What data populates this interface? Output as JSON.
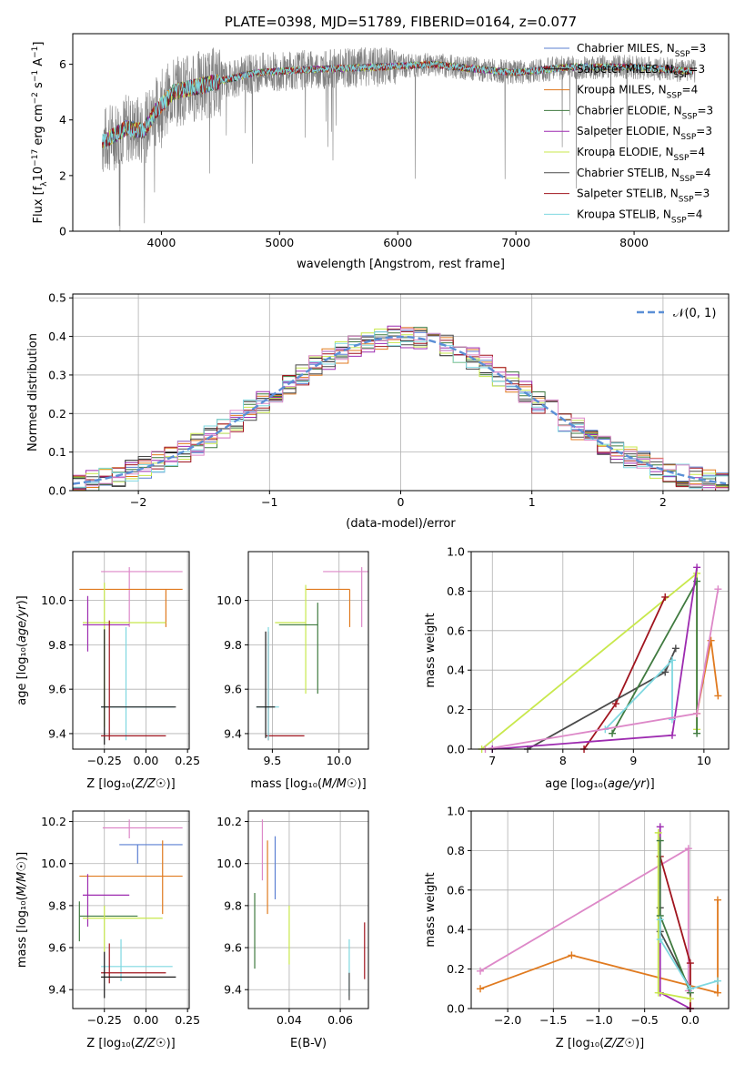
{
  "colors": {
    "Chabrier MILES": "#5b7fd2",
    "Salpeter MILES": "#1a1a1a",
    "Kroupa MILES": "#e07a1f",
    "Chabrier ELODIE": "#3f7a3f",
    "Salpeter ELODIE": "#9d2bb0",
    "Kroupa ELODIE": "#c8e84c",
    "Chabrier STELIB": "#4a4a4a",
    "Salpeter STELIB": "#a0141e",
    "Kroupa STELIB": "#7fd8e0",
    "Pink": "#dd88c8",
    "Normal": "#5b8fd6"
  },
  "chart_data": [
    {
      "id": "spectrum",
      "type": "line",
      "title": "PLATE=0398, MJD=51789, FIBERID=0164, z=0.077",
      "xlabel": "wavelength [Angstrom, rest frame]",
      "ylabel": "Flux [fλ10⁻¹⁷ erg cm⁻² s⁻¹ A⁻¹]",
      "xlim": [
        3250,
        8800
      ],
      "ylim": [
        0,
        7.1
      ],
      "xticks": [
        4000,
        5000,
        6000,
        7000,
        8000
      ],
      "yticks": [
        0,
        2,
        4,
        6
      ],
      "legend": "top-right",
      "legend_entries": [
        {
          "label": "Chabrier MILES, N",
          "sub": "SSP",
          "val": "=3"
        },
        {
          "label": "Salpeter MILES, N",
          "sub": "SSP",
          "val": "=3"
        },
        {
          "label": "Kroupa MILES, N",
          "sub": "SSP",
          "val": "=4"
        },
        {
          "label": "Chabrier ELODIE, N",
          "sub": "SSP",
          "val": "=3"
        },
        {
          "label": "Salpeter ELODIE, N",
          "sub": "SSP",
          "val": "=3"
        },
        {
          "label": "Kroupa ELODIE, N",
          "sub": "SSP",
          "val": "=4"
        },
        {
          "label": "Chabrier STELIB, N",
          "sub": "SSP",
          "val": "=4"
        },
        {
          "label": "Salpeter STELIB, N",
          "sub": "SSP",
          "val": "=3"
        },
        {
          "label": "Kroupa STELIB, N",
          "sub": "SSP",
          "val": "=4"
        }
      ],
      "continuum": [
        [
          3500,
          3.2
        ],
        [
          3700,
          3.7
        ],
        [
          3850,
          3.6
        ],
        [
          3950,
          4.3
        ],
        [
          4100,
          5.0
        ],
        [
          4400,
          5.3
        ],
        [
          4800,
          5.7
        ],
        [
          5200,
          5.8
        ],
        [
          5800,
          5.9
        ],
        [
          6300,
          6.0
        ],
        [
          6600,
          5.85
        ],
        [
          7000,
          5.7
        ],
        [
          7450,
          5.9
        ],
        [
          8000,
          5.9
        ],
        [
          8500,
          5.75
        ]
      ]
    },
    {
      "id": "histogram",
      "type": "histogram",
      "xlabel": "(data-model)/error",
      "ylabel": "Normed distribution",
      "xlim": [
        -2.5,
        2.5
      ],
      "ylim": [
        0,
        0.51
      ],
      "xticks": [
        -2,
        -1,
        0,
        1,
        2
      ],
      "yticks": [
        0.0,
        0.1,
        0.2,
        0.3,
        0.4,
        0.5
      ],
      "legend": "top-right",
      "legend_label": "𝒩(0, 1)",
      "bin_width": 0.1,
      "bin_start": -2.5,
      "curve": "gaussian mean 0 sigma 1"
    },
    {
      "id": "age_vs_Z",
      "type": "scatter",
      "xlabel": "Z [log₁₀(Z/Z☉)]",
      "ylabel": "age  [log₁₀(age/yr)]",
      "xlim": [
        -0.44,
        0.26
      ],
      "ylim": [
        9.33,
        10.22
      ],
      "xticks": [
        -0.25,
        0.0,
        0.25
      ],
      "yticks": [
        9.4,
        9.6,
        9.8,
        10.0
      ],
      "errorbars": [
        {
          "c": "Pink",
          "x": -0.1,
          "y": 10.13,
          "xe": [
            -0.27,
            0.22
          ],
          "ye": [
            9.88,
            10.15
          ]
        },
        {
          "c": "Kroupa MILES",
          "x": 0.12,
          "y": 10.05,
          "xe": [
            -0.4,
            0.22
          ],
          "ye": [
            9.88,
            10.05
          ]
        },
        {
          "c": "Kroupa ELODIE",
          "x": -0.25,
          "y": 9.9,
          "xe": [
            -0.38,
            0.12
          ],
          "ye": [
            9.43,
            10.08
          ]
        },
        {
          "c": "Salpeter ELODIE",
          "x": -0.35,
          "y": 9.89,
          "xe": [
            -0.38,
            -0.1
          ],
          "ye": [
            9.77,
            10.02
          ]
        },
        {
          "c": "Kroupa STELIB",
          "x": -0.12,
          "y": 9.52,
          "xe": [
            -0.27,
            0.17
          ],
          "ye": [
            9.37,
            9.88
          ]
        },
        {
          "c": "Salpeter MILES",
          "x": -0.25,
          "y": 9.52,
          "xe": [
            -0.27,
            0.18
          ],
          "ye": [
            9.35,
            9.87
          ]
        },
        {
          "c": "Salpeter STELIB",
          "x": -0.22,
          "y": 9.39,
          "xe": [
            -0.27,
            0.12
          ],
          "ye": [
            9.37,
            9.91
          ]
        }
      ]
    },
    {
      "id": "age_vs_mass",
      "type": "scatter",
      "xlabel": "mass [log₁₀(M/M☉)]",
      "ylabel": "",
      "xlim": [
        9.32,
        10.22
      ],
      "ylim": [
        9.33,
        10.22
      ],
      "xticks": [
        9.5,
        10.0
      ],
      "yticks": [
        9.4,
        9.6,
        9.8,
        10.0
      ],
      "errorbars": [
        {
          "c": "Pink",
          "x": 10.17,
          "y": 10.13,
          "xe": [
            9.88,
            10.22
          ],
          "ye": [
            9.88,
            10.15
          ]
        },
        {
          "c": "Kroupa MILES",
          "x": 10.08,
          "y": 10.05,
          "xe": [
            9.75,
            10.08
          ],
          "ye": [
            9.88,
            10.05
          ]
        },
        {
          "c": "Kroupa ELODIE",
          "x": 9.75,
          "y": 9.9,
          "xe": [
            9.52,
            9.75
          ],
          "ye": [
            9.58,
            10.07
          ]
        },
        {
          "c": "Chabrier ELODIE",
          "x": 9.84,
          "y": 9.89,
          "xe": [
            9.55,
            9.84
          ],
          "ye": [
            9.58,
            9.99
          ]
        },
        {
          "c": "Salpeter STELIB",
          "x": 9.47,
          "y": 9.39,
          "xe": [
            9.45,
            9.74
          ],
          "ye": [
            9.37,
            9.86
          ]
        },
        {
          "c": "Kroupa STELIB",
          "x": 9.47,
          "y": 9.52,
          "xe": [
            9.38,
            9.55
          ],
          "ye": [
            9.37,
            9.88
          ]
        },
        {
          "c": "Salpeter MILES",
          "x": 9.45,
          "y": 9.52,
          "xe": [
            9.38,
            9.52
          ],
          "ye": [
            9.38,
            9.86
          ]
        }
      ]
    },
    {
      "id": "mass_weight_vs_age",
      "type": "line",
      "xlabel": "age  [log₁₀(age/yr)]",
      "ylabel": "mass weight",
      "xlim": [
        6.7,
        10.35
      ],
      "ylim": [
        0,
        1.0
      ],
      "xticks": [
        7,
        8,
        9,
        10
      ],
      "yticks": [
        0.0,
        0.2,
        0.4,
        0.6,
        0.8,
        1.0
      ],
      "series": [
        {
          "c": "Kroupa ELODIE",
          "x": [
            6.85,
            9.9,
            9.9
          ],
          "y": [
            0.0,
            0.89,
            0.1
          ]
        },
        {
          "c": "Salpeter STELIB",
          "x": [
            8.3,
            8.75,
            9.45
          ],
          "y": [
            0.0,
            0.23,
            0.77
          ]
        },
        {
          "c": "Chabrier STELIB",
          "x": [
            7.5,
            9.45,
            9.6
          ],
          "y": [
            0.0,
            0.39,
            0.51
          ]
        },
        {
          "c": "Chabrier ELODIE",
          "x": [
            8.7,
            9.9,
            9.9
          ],
          "y": [
            0.08,
            0.85,
            0.08
          ]
        },
        {
          "c": "Salpeter ELODIE",
          "x": [
            7.0,
            9.55,
            9.9
          ],
          "y": [
            0.0,
            0.07,
            0.92
          ]
        },
        {
          "c": "Kroupa STELIB",
          "x": [
            8.6,
            9.55,
            9.55
          ],
          "y": [
            0.1,
            0.45,
            0.15
          ]
        },
        {
          "c": "Kroupa MILES",
          "x": [
            9.9,
            10.1,
            10.2
          ],
          "y": [
            0.18,
            0.55,
            0.27
          ]
        },
        {
          "c": "Pink",
          "x": [
            6.9,
            9.9,
            10.2
          ],
          "y": [
            0.0,
            0.18,
            0.81
          ]
        }
      ]
    },
    {
      "id": "mass_vs_Z",
      "type": "scatter",
      "xlabel": "Z [log₁₀(Z/Z☉)]",
      "ylabel": "mass [log₁₀(M/M☉)]",
      "xlim": [
        -0.44,
        0.26
      ],
      "ylim": [
        9.31,
        10.25
      ],
      "xticks": [
        -0.25,
        0.0,
        0.25
      ],
      "yticks": [
        9.4,
        9.6,
        9.8,
        10.0,
        10.2
      ],
      "errorbars": [
        {
          "c": "Pink",
          "x": -0.1,
          "y": 10.17,
          "xe": [
            -0.26,
            0.22
          ],
          "ye": [
            10.12,
            10.21
          ]
        },
        {
          "c": "Chabrier MILES",
          "x": -0.05,
          "y": 10.09,
          "xe": [
            -0.16,
            0.22
          ],
          "ye": [
            10.0,
            10.09
          ]
        },
        {
          "c": "Kroupa MILES",
          "x": 0.1,
          "y": 9.94,
          "xe": [
            -0.4,
            0.22
          ],
          "ye": [
            9.76,
            10.11
          ]
        },
        {
          "c": "Salpeter ELODIE",
          "x": -0.35,
          "y": 9.85,
          "xe": [
            -0.38,
            -0.1
          ],
          "ye": [
            9.7,
            9.95
          ]
        },
        {
          "c": "Chabrier ELODIE",
          "x": -0.4,
          "y": 9.75,
          "xe": [
            -0.4,
            -0.05
          ],
          "ye": [
            9.63,
            9.82
          ]
        },
        {
          "c": "Kroupa ELODIE",
          "x": -0.25,
          "y": 9.74,
          "xe": [
            -0.38,
            0.1
          ],
          "ye": [
            9.58,
            9.8
          ]
        },
        {
          "c": "Kroupa STELIB",
          "x": -0.15,
          "y": 9.51,
          "xe": [
            -0.27,
            0.16
          ],
          "ye": [
            9.44,
            9.64
          ]
        },
        {
          "c": "Salpeter STELIB",
          "x": -0.22,
          "y": 9.48,
          "xe": [
            -0.27,
            0.12
          ],
          "ye": [
            9.43,
            9.62
          ]
        },
        {
          "c": "Salpeter MILES",
          "x": -0.25,
          "y": 9.46,
          "xe": [
            -0.27,
            0.18
          ],
          "ye": [
            9.36,
            9.58
          ]
        }
      ]
    },
    {
      "id": "mass_vs_ebv",
      "type": "scatter",
      "xlabel": "E(B-V)",
      "ylabel": "",
      "xlim": [
        0.024,
        0.071
      ],
      "ylim": [
        9.31,
        10.25
      ],
      "xticks": [
        0.04,
        0.06
      ],
      "yticks": [
        9.4,
        9.6,
        9.8,
        10.0,
        10.2
      ],
      "vbars": [
        {
          "c": "Chabrier ELODIE",
          "x": 0.0265,
          "y": [
            9.5,
            9.86
          ]
        },
        {
          "c": "Pink",
          "x": 0.0295,
          "y": [
            9.92,
            10.21
          ]
        },
        {
          "c": "Kroupa MILES",
          "x": 0.0315,
          "y": [
            9.76,
            10.11
          ]
        },
        {
          "c": "Chabrier MILES",
          "x": 0.0345,
          "y": [
            9.83,
            10.13
          ]
        },
        {
          "c": "Kroupa ELODIE",
          "x": 0.04,
          "y": [
            9.52,
            9.8
          ]
        },
        {
          "c": "Kroupa STELIB",
          "x": 0.0635,
          "y": [
            9.37,
            9.64
          ]
        },
        {
          "c": "Chabrier STELIB",
          "x": 0.0635,
          "y": [
            9.35,
            9.48
          ]
        },
        {
          "c": "Salpeter STELIB",
          "x": 0.0695,
          "y": [
            9.45,
            9.72
          ]
        }
      ]
    },
    {
      "id": "mass_weight_vs_Z",
      "type": "line",
      "xlabel": "Z [log₁₀(Z/Z☉)]",
      "ylabel": "mass weight",
      "xlim": [
        -2.4,
        0.42
      ],
      "ylim": [
        0,
        1.0
      ],
      "xticks": [
        -2.0,
        -1.5,
        -1.0,
        -0.5,
        0.0
      ],
      "yticks": [
        0.0,
        0.2,
        0.4,
        0.6,
        0.8,
        1.0
      ],
      "series": [
        {
          "c": "Pink",
          "x": [
            -2.3,
            -0.02,
            -0.02
          ],
          "y": [
            0.19,
            0.81,
            0.09
          ]
        },
        {
          "c": "Kroupa MILES",
          "x": [
            -2.3,
            -1.3,
            0.3,
            0.3
          ],
          "y": [
            0.1,
            0.27,
            0.08,
            0.55
          ]
        },
        {
          "c": "Salpeter ELODIE",
          "x": [
            -0.33,
            -0.33,
            0.0
          ],
          "y": [
            0.92,
            0.08,
            0.0
          ]
        },
        {
          "c": "Salpeter STELIB",
          "x": [
            -0.33,
            0.0,
            0.0
          ],
          "y": [
            0.77,
            0.23,
            0.0
          ]
        },
        {
          "c": "Chabrier STELIB",
          "x": [
            -0.33,
            -0.33,
            0.0
          ],
          "y": [
            0.51,
            0.39,
            0.1
          ]
        },
        {
          "c": "Kroupa ELODIE",
          "x": [
            -0.35,
            -0.35,
            0.0
          ],
          "y": [
            0.89,
            0.08,
            0.05
          ]
        },
        {
          "c": "Chabrier ELODIE",
          "x": [
            -0.33,
            -0.33,
            0.0
          ],
          "y": [
            0.85,
            0.47,
            0.08
          ]
        },
        {
          "c": "Kroupa STELIB",
          "x": [
            -0.33,
            -0.33,
            0.0,
            0.3
          ],
          "y": [
            0.45,
            0.35,
            0.1,
            0.14
          ]
        }
      ]
    }
  ]
}
